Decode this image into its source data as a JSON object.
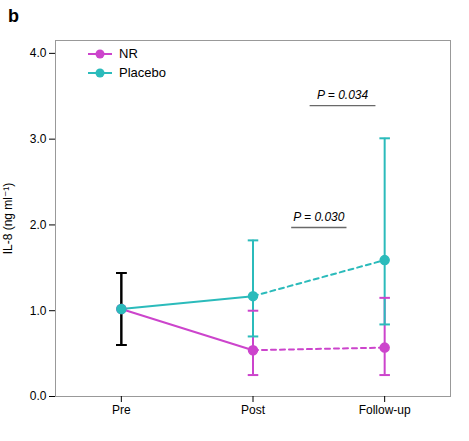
{
  "chart_data": {
    "type": "line",
    "title": "b",
    "categories": [
      "Pre",
      "Post",
      "Follow-up"
    ],
    "ylabel": "IL-8 (ng ml⁻¹)",
    "ylim": [
      0,
      4.15
    ],
    "yticks": [
      0,
      1,
      2,
      3,
      4
    ],
    "grid": false,
    "legend": "upper left",
    "series": [
      {
        "name": "NR",
        "color": "#CC44CC",
        "marker": "circle",
        "line_style": [
          "solid",
          "dashed"
        ],
        "values": [
          1.02,
          0.54,
          0.57
        ],
        "error_low": [
          0.42,
          0.29,
          0.32
        ],
        "error_high": [
          0.42,
          0.46,
          0.58
        ],
        "error_colors": [
          "#000000",
          "#CC44CC",
          "#CC44CC"
        ]
      },
      {
        "name": "Placebo",
        "color": "#2BBBBB",
        "marker": "circle",
        "line_style": [
          "solid",
          "dashed"
        ],
        "values": [
          1.02,
          1.17,
          1.59
        ],
        "error_low": [
          0.42,
          0.47,
          0.75
        ],
        "error_high": [
          0.42,
          0.65,
          1.42
        ],
        "error_colors": [
          "#000000",
          "#2BBBBB",
          "#2BBBBB"
        ]
      }
    ],
    "annotations": [
      {
        "text": "P = 0.030",
        "x": 1.5,
        "y": 2.05,
        "line_y": 1.97,
        "line_x": [
          1.29,
          1.71
        ]
      },
      {
        "text": "P = 0.034",
        "x": 1.68,
        "y": 3.47,
        "line_y": 3.39,
        "line_x": [
          1.43,
          1.93
        ]
      }
    ]
  }
}
